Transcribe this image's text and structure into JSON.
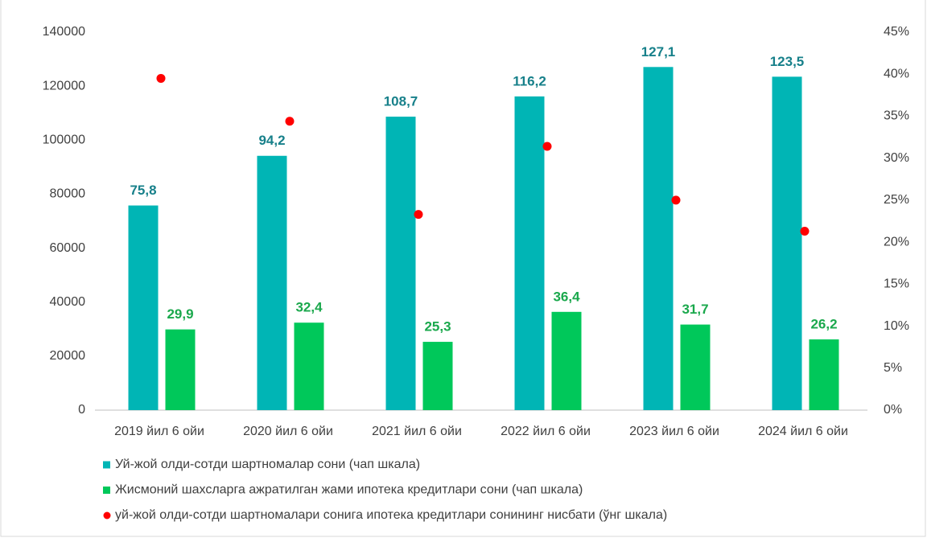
{
  "chart_data": {
    "type": "bar",
    "categories": [
      "2019 йил 6 ойи",
      "2020 йил 6 ойи",
      "2021 йил 6 ойи",
      "2022 йил 6 ойи",
      "2023 йил 6 ойи",
      "2024 йил 6 ойи"
    ],
    "series": [
      {
        "name": "Уй-жой олди-сотди шартномалар сони (чап шкала)",
        "color": "#00b5b5",
        "label_color": "#17808a",
        "values": [
          75800,
          94200,
          108700,
          116200,
          127100,
          123500
        ],
        "value_labels": [
          "75,8",
          "94,2",
          "108,7",
          "116,2",
          "127,1",
          "123,5"
        ]
      },
      {
        "name": "Жисмоний шахсларга ажратилган жами ипотека кредитлари сони (чап шкала)",
        "color": "#00c85a",
        "label_color": "#1aa84c",
        "values": [
          29900,
          32400,
          25300,
          36400,
          31700,
          26200
        ],
        "value_labels": [
          "29,9",
          "32,4",
          "25,3",
          "36,4",
          "31,7",
          "26,2"
        ]
      },
      {
        "name": "уй-жой олди-сотди шартномалари сонига ипотека кредитлари сонининг нисбати (ўнг шкала)",
        "color": "#ff0000",
        "type": "scatter",
        "axis": "y2",
        "values": [
          39.5,
          34.4,
          23.3,
          31.4,
          25.0,
          21.3
        ]
      }
    ],
    "ylim": [
      0,
      140000
    ],
    "yticks": [
      0,
      20000,
      40000,
      60000,
      80000,
      100000,
      120000,
      140000
    ],
    "y2lim": [
      0,
      45
    ],
    "y2ticks": [
      {
        "value": 0,
        "label": "0%"
      },
      {
        "value": 5,
        "label": "5%"
      },
      {
        "value": 10,
        "label": "10%"
      },
      {
        "value": 15,
        "label": "15%"
      },
      {
        "value": 20,
        "label": "20%"
      },
      {
        "value": 25,
        "label": "25%"
      },
      {
        "value": 30,
        "label": "30%"
      },
      {
        "value": 35,
        "label": "35%"
      },
      {
        "value": 40,
        "label": "40%"
      },
      {
        "value": 45,
        "label": "45%"
      }
    ],
    "grid": false,
    "legend": "bottom"
  }
}
